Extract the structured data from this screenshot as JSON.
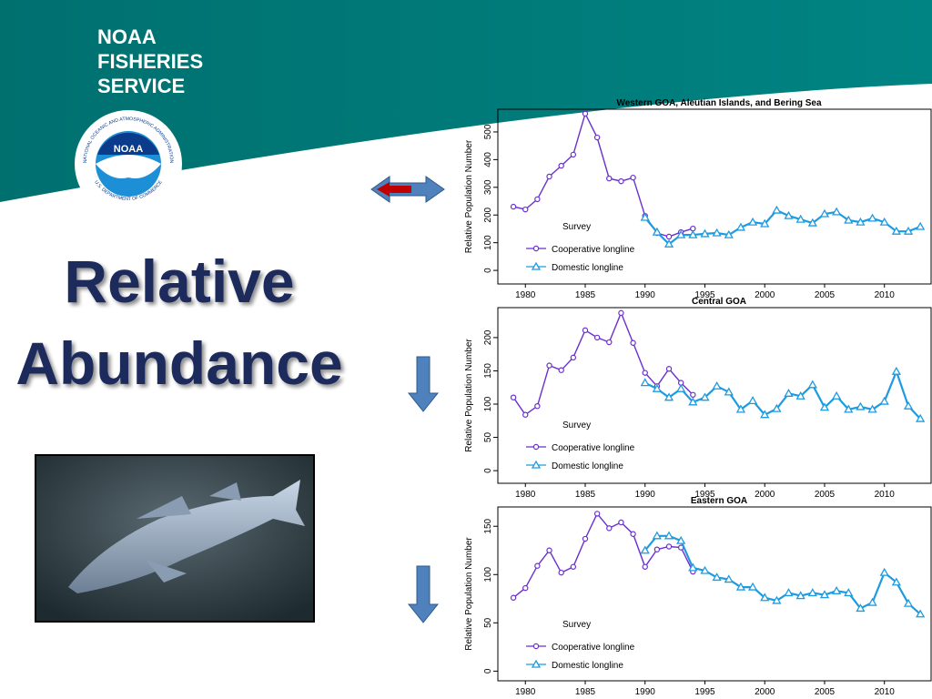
{
  "slide": {
    "logo_lines": [
      "NOAA",
      "FISHERIES",
      "SERVICE"
    ],
    "emblem": "NOAA",
    "emblem_top": "NATIONAL OCEANIC AND ATMOSPHERIC ADMINISTRATION",
    "emblem_bottom": "U.S. DEPARTMENT OF COMMERCE",
    "heading": [
      "Relative",
      "Abundance"
    ]
  },
  "chart_data": [
    {
      "type": "line",
      "title": "Western GOA, Aleutian Islands, and Bering Sea",
      "y_label": "Relative Population Number",
      "legend_title": "Survey",
      "x": [
        1979,
        1980,
        1981,
        1982,
        1983,
        1984,
        1985,
        1986,
        1987,
        1988,
        1989,
        1990,
        1991,
        1992,
        1993,
        1994,
        1995,
        1996,
        1997,
        1998,
        1999,
        2000,
        2001,
        2002,
        2003,
        2004,
        2005,
        2006,
        2007,
        2008,
        2009,
        2010,
        2011,
        2012,
        2013
      ],
      "xlim": [
        1977.7,
        2013.9
      ],
      "xticks": [
        1980,
        1985,
        1990,
        1995,
        2000,
        2005,
        2010
      ],
      "ylim": [
        -49,
        582
      ],
      "yticks": [
        0,
        100,
        200,
        300,
        400,
        500
      ],
      "series": [
        {
          "name": "Cooperative longline",
          "color": "#6a2fd0",
          "marker": "circle",
          "values": [
            230,
            220,
            257,
            339,
            378,
            418,
            566,
            480,
            332,
            322,
            335,
            197,
            135,
            122,
            138,
            151,
            null,
            null,
            null,
            null,
            null,
            null,
            null,
            null,
            null,
            null,
            null,
            null,
            null,
            null,
            null,
            null,
            null,
            null,
            null
          ]
        },
        {
          "name": "Domestic longline",
          "color": "#1e9be0",
          "marker": "triangle",
          "values": [
            null,
            null,
            null,
            null,
            null,
            null,
            null,
            null,
            null,
            null,
            null,
            191,
            138,
            95,
            128,
            128,
            132,
            135,
            128,
            155,
            174,
            168,
            217,
            197,
            184,
            171,
            204,
            211,
            181,
            174,
            188,
            174,
            141,
            141,
            158
          ]
        }
      ]
    },
    {
      "type": "line",
      "title": "Central GOA",
      "y_label": "Relative Population Number",
      "legend_title": "Survey",
      "x": [
        1979,
        1980,
        1981,
        1982,
        1983,
        1984,
        1985,
        1986,
        1987,
        1988,
        1989,
        1990,
        1991,
        1992,
        1993,
        1994,
        1995,
        1996,
        1997,
        1998,
        1999,
        2000,
        2001,
        2002,
        2003,
        2004,
        2005,
        2006,
        2007,
        2008,
        2009,
        2010,
        2011,
        2012,
        2013
      ],
      "xlim": [
        1977.7,
        2013.9
      ],
      "xticks": [
        1980,
        1985,
        1990,
        1995,
        2000,
        2005,
        2010
      ],
      "ylim": [
        -19,
        245
      ],
      "yticks": [
        0,
        50,
        100,
        150,
        200
      ],
      "series": [
        {
          "name": "Cooperative longline",
          "color": "#6a2fd0",
          "marker": "circle",
          "values": [
            110,
            84,
            97,
            158,
            151,
            170,
            211,
            200,
            193,
            237,
            192,
            147,
            127,
            153,
            132,
            114,
            null,
            null,
            null,
            null,
            null,
            null,
            null,
            null,
            null,
            null,
            null,
            null,
            null,
            null,
            null,
            null,
            null,
            null,
            null
          ]
        },
        {
          "name": "Domestic longline",
          "color": "#1e9be0",
          "marker": "triangle",
          "values": [
            null,
            null,
            null,
            null,
            null,
            null,
            null,
            null,
            null,
            null,
            null,
            132,
            123,
            110,
            123,
            103,
            110,
            127,
            118,
            92,
            105,
            84,
            93,
            116,
            112,
            129,
            95,
            112,
            92,
            96,
            92,
            104,
            149,
            97,
            78
          ]
        }
      ]
    },
    {
      "type": "line",
      "title": "Eastern GOA",
      "y_label": "Relative Population Number",
      "legend_title": "Survey",
      "x": [
        1979,
        1980,
        1981,
        1982,
        1983,
        1984,
        1985,
        1986,
        1987,
        1988,
        1989,
        1990,
        1991,
        1992,
        1993,
        1994,
        1995,
        1996,
        1997,
        1998,
        1999,
        2000,
        2001,
        2002,
        2003,
        2004,
        2005,
        2006,
        2007,
        2008,
        2009,
        2010,
        2011,
        2012,
        2013
      ],
      "xlim": [
        1977.7,
        2013.9
      ],
      "xticks": [
        1980,
        1985,
        1990,
        1995,
        2000,
        2005,
        2010
      ],
      "ylim": [
        -10,
        170
      ],
      "yticks": [
        0,
        50,
        100,
        150
      ],
      "series": [
        {
          "name": "Cooperative longline",
          "color": "#6a2fd0",
          "marker": "circle",
          "values": [
            76,
            86,
            109,
            125,
            102,
            108,
            137,
            163,
            148,
            154,
            142,
            108,
            126,
            129,
            128,
            103,
            null,
            null,
            null,
            null,
            null,
            null,
            null,
            null,
            null,
            null,
            null,
            null,
            null,
            null,
            null,
            null,
            null,
            null,
            null
          ]
        },
        {
          "name": "Domestic longline",
          "color": "#1e9be0",
          "marker": "triangle",
          "values": [
            null,
            null,
            null,
            null,
            null,
            null,
            null,
            null,
            null,
            null,
            null,
            125,
            140,
            140,
            135,
            107,
            104,
            97,
            95,
            87,
            87,
            76,
            73,
            81,
            78,
            81,
            79,
            83,
            81,
            65,
            71,
            102,
            92,
            70,
            59
          ]
        }
      ]
    }
  ]
}
